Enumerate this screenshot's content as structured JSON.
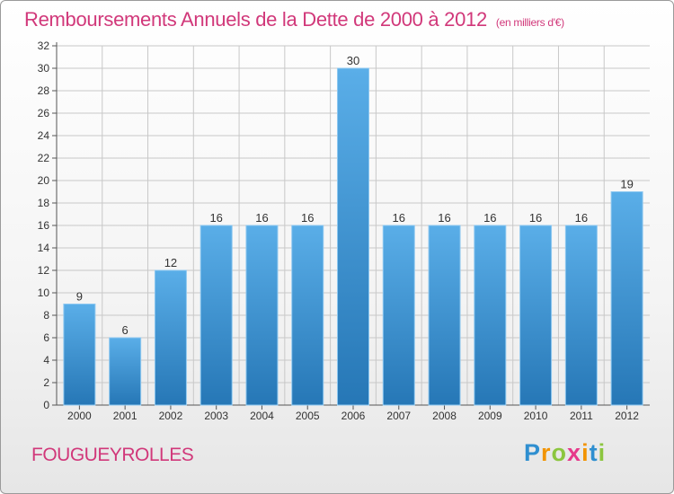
{
  "header": {
    "title": "Remboursements Annuels de la Dette de 2000 à 2012",
    "unit": "(en milliers d'€)"
  },
  "footer": {
    "commune": "FOUGUEYROLLES",
    "brand": "Proxiti",
    "brand_letters": [
      "P",
      "r",
      "o",
      "x",
      "i",
      "t",
      "i"
    ]
  },
  "colors": {
    "bar_top": "#5aaee8",
    "bar_bottom": "#2677b6",
    "title": "#d1387a",
    "grid": "#c8c8c8"
  },
  "chart_data": {
    "type": "bar",
    "categories": [
      "2000",
      "2001",
      "2002",
      "2003",
      "2004",
      "2005",
      "2006",
      "2007",
      "2008",
      "2009",
      "2010",
      "2011",
      "2012"
    ],
    "values": [
      9,
      6,
      12,
      16,
      16,
      16,
      30,
      16,
      16,
      16,
      16,
      16,
      19
    ],
    "ylim": [
      0,
      32
    ],
    "yticks": [
      0,
      2,
      4,
      6,
      8,
      10,
      12,
      14,
      16,
      18,
      20,
      22,
      24,
      26,
      28,
      30,
      32
    ],
    "grid": true,
    "data_labels": true
  }
}
